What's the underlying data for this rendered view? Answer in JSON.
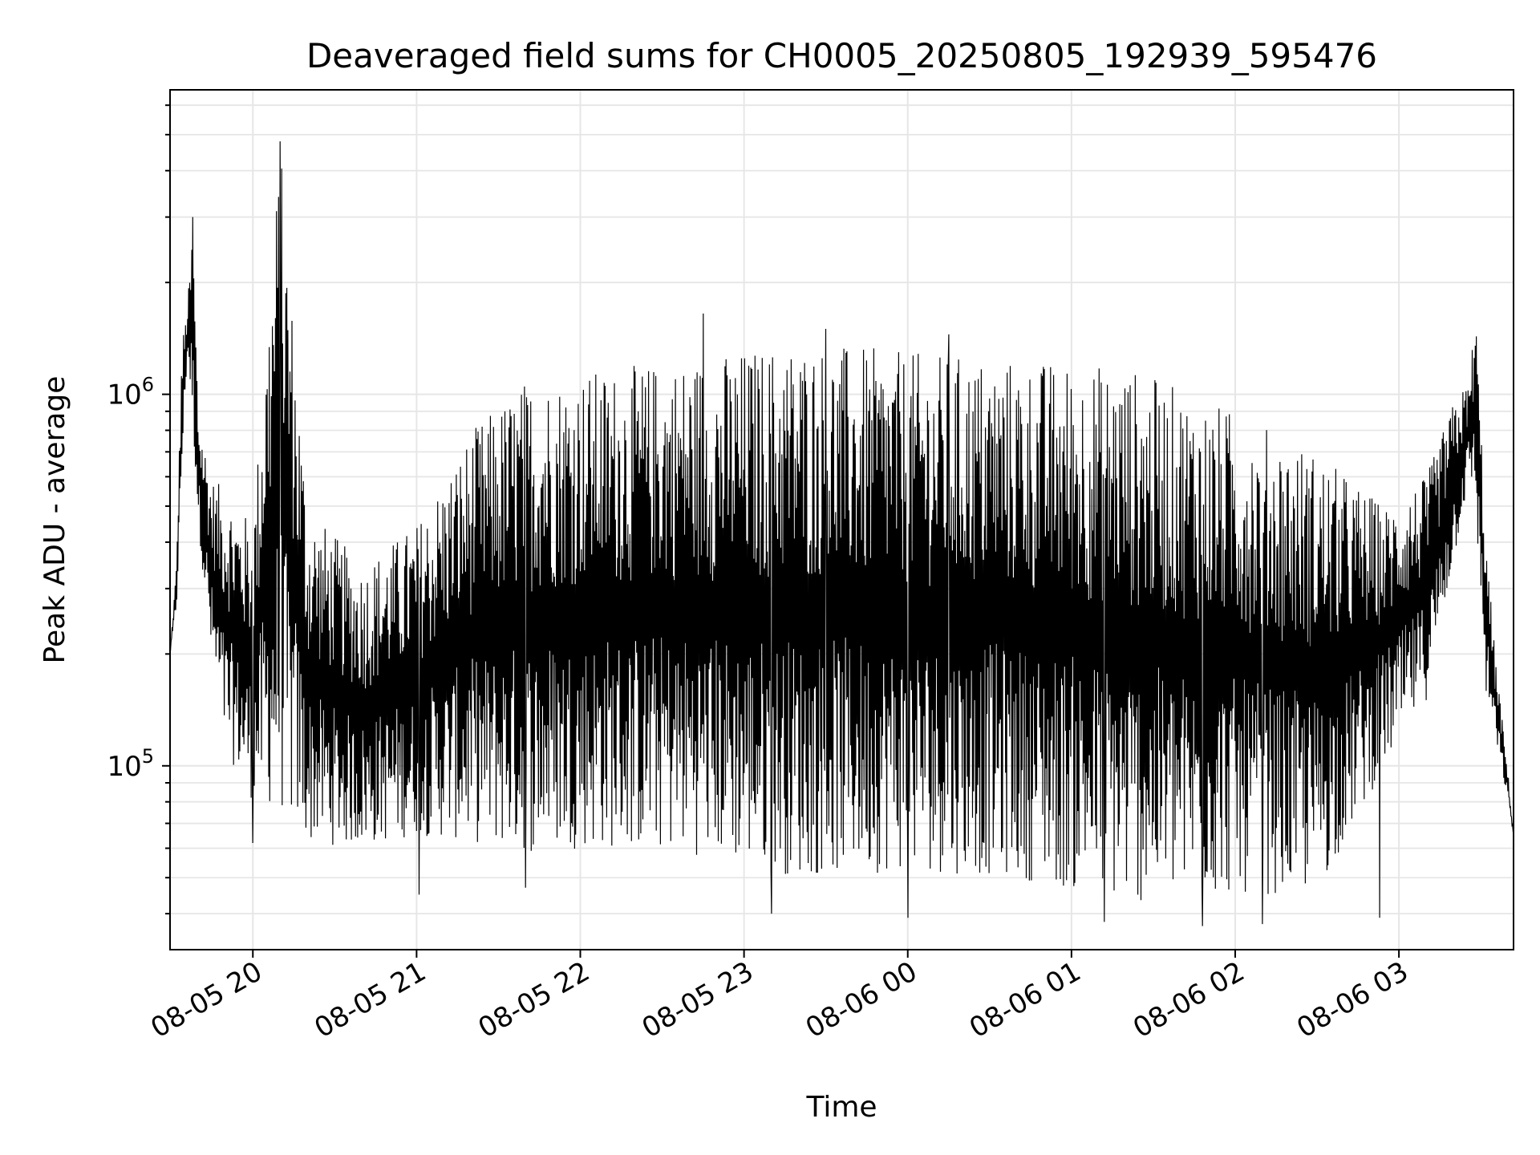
{
  "chart_data": {
    "type": "line",
    "title": "Deaveraged field sums for CH0005_20250805_192939_595476",
    "xlabel": "Time",
    "ylabel": "Peak ADU - average",
    "x_start": "2025-08-05 19:29:39",
    "x_end": "2025-08-06 03:42",
    "xlim": [
      "2025-08-05 19:29:39",
      "2025-08-06 03:42:00"
    ],
    "ylim": [
      32000,
      6600000
    ],
    "yscale": "log",
    "grid": true,
    "x_tick_values": [
      "2025-08-05 20:00",
      "2025-08-05 21:00",
      "2025-08-05 22:00",
      "2025-08-05 23:00",
      "2025-08-06 00:00",
      "2025-08-06 01:00",
      "2025-08-06 02:00",
      "2025-08-06 03:00"
    ],
    "x_tick_labels": [
      "08-05 20",
      "08-05 21",
      "08-05 22",
      "08-05 23",
      "08-06 00",
      "08-06 01",
      "08-06 02",
      "08-06 03"
    ],
    "y_ticks": [
      {
        "value": 100000,
        "base": "10",
        "exp": "5"
      },
      {
        "value": 1000000,
        "base": "10",
        "exp": "6"
      }
    ],
    "series": [
      {
        "color": "#000000",
        "envelope": [
          {
            "t": "2025-08-05 19:29:39",
            "high": 200000,
            "low": 200000
          },
          {
            "t": "2025-08-05 19:32",
            "high": 350000,
            "low": 260000
          },
          {
            "t": "2025-08-05 19:34",
            "high": 1400000,
            "low": 600000
          },
          {
            "t": "2025-08-05 19:36",
            "high": 1700000,
            "low": 1300000
          },
          {
            "t": "2025-08-05 19:38",
            "high": 3000000,
            "low": 800000
          },
          {
            "t": "2025-08-05 19:40",
            "high": 900000,
            "low": 450000
          },
          {
            "t": "2025-08-05 19:45",
            "high": 600000,
            "low": 180000
          },
          {
            "t": "2025-08-05 19:50",
            "high": 550000,
            "low": 110000
          },
          {
            "t": "2025-08-05 20:00",
            "high": 450000,
            "low": 80000
          },
          {
            "t": "2025-08-05 20:10",
            "high": 4800000,
            "low": 75000
          },
          {
            "t": "2025-08-05 20:20",
            "high": 500000,
            "low": 62000
          },
          {
            "t": "2025-08-05 20:40",
            "high": 350000,
            "low": 60000
          },
          {
            "t": "2025-08-05 21:00",
            "high": 450000,
            "low": 65000
          },
          {
            "t": "2025-08-05 21:20",
            "high": 800000,
            "low": 62000
          },
          {
            "t": "2025-08-05 21:40",
            "high": 1100000,
            "low": 58000
          },
          {
            "t": "2025-08-05 22:00",
            "high": 1150000,
            "low": 60000
          },
          {
            "t": "2025-08-05 22:40",
            "high": 1250000,
            "low": 58000
          },
          {
            "t": "2025-08-05 23:20",
            "high": 1400000,
            "low": 50000
          },
          {
            "t": "2025-08-06 00:00",
            "high": 1300000,
            "low": 52000
          },
          {
            "t": "2025-08-06 00:40",
            "high": 1250000,
            "low": 50000
          },
          {
            "t": "2025-08-06 01:20",
            "high": 1200000,
            "low": 42000
          },
          {
            "t": "2025-08-06 02:00",
            "high": 900000,
            "low": 45000
          },
          {
            "t": "2025-08-06 02:30",
            "high": 700000,
            "low": 45000
          },
          {
            "t": "2025-08-06 02:55",
            "high": 500000,
            "low": 100000
          },
          {
            "t": "2025-08-06 03:10",
            "high": 600000,
            "low": 150000
          },
          {
            "t": "2025-08-06 03:20",
            "high": 950000,
            "low": 350000
          },
          {
            "t": "2025-08-06 03:26",
            "high": 1100000,
            "low": 600000
          },
          {
            "t": "2025-08-06 03:28",
            "high": 1800000,
            "low": 500000
          },
          {
            "t": "2025-08-06 03:32",
            "high": 400000,
            "low": 150000
          },
          {
            "t": "2025-08-06 03:35",
            "high": 210000,
            "low": 120000
          },
          {
            "t": "2025-08-06 03:40",
            "high": 95000,
            "low": 80000
          },
          {
            "t": "2025-08-06 03:42",
            "high": 65000,
            "low": 65000
          }
        ],
        "spikes": [
          {
            "t": "2025-08-05 19:38",
            "value": 3000000
          },
          {
            "t": "2025-08-05 20:10",
            "value": 4800000
          },
          {
            "t": "2025-08-05 20:00",
            "value": 62000
          },
          {
            "t": "2025-08-05 21:01",
            "value": 45000
          },
          {
            "t": "2025-08-05 21:40",
            "value": 47000
          },
          {
            "t": "2025-08-05 22:45",
            "value": 1650000
          },
          {
            "t": "2025-08-05 23:10",
            "value": 40000
          },
          {
            "t": "2025-08-05 23:30",
            "value": 1500000
          },
          {
            "t": "2025-08-06 00:00",
            "value": 39000
          },
          {
            "t": "2025-08-06 00:15",
            "value": 1450000
          },
          {
            "t": "2025-08-06 01:12",
            "value": 38000
          },
          {
            "t": "2025-08-06 01:48",
            "value": 37000
          },
          {
            "t": "2025-08-06 02:10",
            "value": 37500
          },
          {
            "t": "2025-08-06 02:53",
            "value": 39000
          }
        ]
      }
    ]
  }
}
